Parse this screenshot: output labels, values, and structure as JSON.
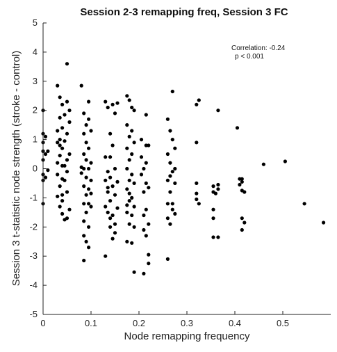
{
  "chart_data": {
    "type": "scatter",
    "title": "Session 2-3 remapping freq, Session 3 FC",
    "xlabel": "Node remapping frequency",
    "ylabel": "Session 3 t-statistic node strength (stroke - control)",
    "xlim": [
      0,
      0.6
    ],
    "ylim": [
      -5,
      5
    ],
    "xticks": [
      "0",
      "0.1",
      "0.2",
      "0.3",
      "0.4",
      "0.5"
    ],
    "yticks": [
      "-5",
      "-4",
      "-3",
      "-2",
      "-1",
      "0",
      "1",
      "2",
      "3",
      "4",
      "5"
    ],
    "grid": false,
    "annotations": [
      "Correlation: -0.24",
      "p < 0.001"
    ],
    "marker_color": "#000000",
    "points": [
      [
        0.0,
        2.0
      ],
      [
        0.0,
        1.2
      ],
      [
        0.0,
        0.9
      ],
      [
        0.0,
        0.6
      ],
      [
        0.0,
        0.3
      ],
      [
        0.0,
        -0.2
      ],
      [
        0.0,
        -0.4
      ],
      [
        0.0,
        -1.2
      ],
      [
        0.005,
        1.1
      ],
      [
        0.005,
        0.5
      ],
      [
        0.005,
        -0.3
      ],
      [
        0.01,
        0.6
      ],
      [
        0.01,
        -0.05
      ],
      [
        0.03,
        2.85
      ],
      [
        0.03,
        1.3
      ],
      [
        0.03,
        0.9
      ],
      [
        0.03,
        0.2
      ],
      [
        0.03,
        -0.2
      ],
      [
        0.035,
        2.45
      ],
      [
        0.035,
        1.75
      ],
      [
        0.035,
        1.0
      ],
      [
        0.035,
        0.45
      ],
      [
        0.035,
        -0.6
      ],
      [
        0.035,
        -1.3
      ],
      [
        0.04,
        2.2
      ],
      [
        0.04,
        1.4
      ],
      [
        0.04,
        0.7
      ],
      [
        0.04,
        0.1
      ],
      [
        0.04,
        -0.9
      ],
      [
        0.04,
        -1.55
      ],
      [
        0.045,
        1.85
      ],
      [
        0.045,
        0.95
      ],
      [
        0.045,
        -0.4
      ],
      [
        0.045,
        -1.75
      ],
      [
        0.05,
        3.6
      ],
      [
        0.05,
        2.3
      ],
      [
        0.05,
        1.2
      ],
      [
        0.05,
        0.3
      ],
      [
        0.05,
        -0.8
      ],
      [
        0.05,
        -1.7
      ],
      [
        0.055,
        1.6
      ],
      [
        0.055,
        0.5
      ],
      [
        0.055,
        -1.4
      ],
      [
        0.03,
        -0.95
      ],
      [
        0.04,
        -1.1
      ],
      [
        0.045,
        0.1
      ],
      [
        0.05,
        -0.1
      ],
      [
        0.035,
        0.8
      ],
      [
        0.055,
        2.0
      ],
      [
        0.04,
        -0.35
      ],
      [
        0.08,
        2.85
      ],
      [
        0.085,
        1.9
      ],
      [
        0.085,
        1.2
      ],
      [
        0.085,
        0.5
      ],
      [
        0.085,
        0.0
      ],
      [
        0.085,
        -0.6
      ],
      [
        0.085,
        -1.2
      ],
      [
        0.085,
        -1.8
      ],
      [
        0.085,
        -2.3
      ],
      [
        0.085,
        -3.15
      ],
      [
        0.09,
        1.5
      ],
      [
        0.09,
        0.9
      ],
      [
        0.09,
        0.3
      ],
      [
        0.09,
        -0.3
      ],
      [
        0.09,
        -0.9
      ],
      [
        0.09,
        -1.5
      ],
      [
        0.09,
        -2.5
      ],
      [
        0.095,
        2.3
      ],
      [
        0.095,
        1.7
      ],
      [
        0.095,
        0.7
      ],
      [
        0.095,
        0.0
      ],
      [
        0.095,
        -0.7
      ],
      [
        0.095,
        -1.2
      ],
      [
        0.095,
        -2.0
      ],
      [
        0.095,
        -2.7
      ],
      [
        0.1,
        1.3
      ],
      [
        0.1,
        0.2
      ],
      [
        0.1,
        -0.4
      ],
      [
        0.1,
        -1.3
      ],
      [
        0.08,
        0.05
      ],
      [
        0.08,
        -0.15
      ],
      [
        0.1,
        -0.85
      ],
      [
        0.13,
        2.3
      ],
      [
        0.13,
        0.4
      ],
      [
        0.13,
        -0.4
      ],
      [
        0.13,
        -1.3
      ],
      [
        0.13,
        -3.0
      ],
      [
        0.135,
        2.1
      ],
      [
        0.135,
        -0.1
      ],
      [
        0.135,
        -0.8
      ],
      [
        0.135,
        -1.5
      ],
      [
        0.14,
        1.2
      ],
      [
        0.14,
        0.4
      ],
      [
        0.14,
        -0.3
      ],
      [
        0.14,
        -1.1
      ],
      [
        0.14,
        -1.7
      ],
      [
        0.145,
        2.2
      ],
      [
        0.145,
        0.8
      ],
      [
        0.145,
        -0.6
      ],
      [
        0.145,
        -1.6
      ],
      [
        0.145,
        -2.4
      ],
      [
        0.15,
        1.9
      ],
      [
        0.15,
        0.0
      ],
      [
        0.15,
        -0.9
      ],
      [
        0.15,
        -1.9
      ],
      [
        0.15,
        -2.2
      ],
      [
        0.155,
        2.25
      ],
      [
        0.155,
        -0.45
      ],
      [
        0.155,
        -1.35
      ],
      [
        0.135,
        -0.65
      ],
      [
        0.14,
        -2.0
      ],
      [
        0.175,
        2.5
      ],
      [
        0.175,
        1.5
      ],
      [
        0.175,
        0.7
      ],
      [
        0.175,
        0.0
      ],
      [
        0.175,
        -0.7
      ],
      [
        0.175,
        -1.5
      ],
      [
        0.175,
        -2.5
      ],
      [
        0.18,
        2.35
      ],
      [
        0.18,
        1.1
      ],
      [
        0.18,
        0.3
      ],
      [
        0.18,
        -0.4
      ],
      [
        0.18,
        -1.1
      ],
      [
        0.18,
        -1.9
      ],
      [
        0.185,
        2.1
      ],
      [
        0.185,
        1.3
      ],
      [
        0.185,
        0.5
      ],
      [
        0.185,
        -0.2
      ],
      [
        0.185,
        -1.0
      ],
      [
        0.185,
        -1.6
      ],
      [
        0.185,
        -2.55
      ],
      [
        0.19,
        2.0
      ],
      [
        0.19,
        0.9
      ],
      [
        0.19,
        -0.5
      ],
      [
        0.19,
        -1.3
      ],
      [
        0.19,
        -2.0
      ],
      [
        0.19,
        -3.55
      ],
      [
        0.18,
        -0.85
      ],
      [
        0.175,
        -1.25
      ],
      [
        0.205,
        1.0
      ],
      [
        0.205,
        0.4
      ],
      [
        0.205,
        -0.2
      ],
      [
        0.21,
        -0.8
      ],
      [
        0.21,
        -1.6
      ],
      [
        0.21,
        -2.1
      ],
      [
        0.21,
        -3.6
      ],
      [
        0.215,
        1.85
      ],
      [
        0.215,
        0.8
      ],
      [
        0.215,
        0.2
      ],
      [
        0.215,
        -0.5
      ],
      [
        0.215,
        -1.4
      ],
      [
        0.215,
        -2.3
      ],
      [
        0.22,
        0.8
      ],
      [
        0.22,
        -0.65
      ],
      [
        0.22,
        -1.9
      ],
      [
        0.22,
        -2.95
      ],
      [
        0.22,
        -3.25
      ],
      [
        0.21,
        0.0
      ],
      [
        0.26,
        1.7
      ],
      [
        0.26,
        0.5
      ],
      [
        0.26,
        -0.4
      ],
      [
        0.26,
        -1.2
      ],
      [
        0.26,
        -1.7
      ],
      [
        0.26,
        -3.1
      ],
      [
        0.265,
        1.3
      ],
      [
        0.265,
        0.2
      ],
      [
        0.265,
        -0.8
      ],
      [
        0.265,
        -1.9
      ],
      [
        0.27,
        2.65
      ],
      [
        0.27,
        1.0
      ],
      [
        0.27,
        -0.1
      ],
      [
        0.27,
        -1.2
      ],
      [
        0.27,
        -1.4
      ],
      [
        0.275,
        0.7
      ],
      [
        0.275,
        0.0
      ],
      [
        0.275,
        -0.5
      ],
      [
        0.275,
        -1.55
      ],
      [
        0.265,
        -0.25
      ],
      [
        0.32,
        2.2
      ],
      [
        0.325,
        2.35
      ],
      [
        0.32,
        0.9
      ],
      [
        0.32,
        -0.5
      ],
      [
        0.32,
        -1.05
      ],
      [
        0.325,
        -1.2
      ],
      [
        0.32,
        -0.85
      ],
      [
        0.355,
        -0.6
      ],
      [
        0.355,
        -0.8
      ],
      [
        0.355,
        -1.4
      ],
      [
        0.355,
        -1.7
      ],
      [
        0.355,
        -2.35
      ],
      [
        0.365,
        2.0
      ],
      [
        0.365,
        -0.7
      ],
      [
        0.365,
        -0.55
      ],
      [
        0.365,
        -2.35
      ],
      [
        0.36,
        -0.85
      ],
      [
        0.405,
        1.4
      ],
      [
        0.41,
        -0.35
      ],
      [
        0.41,
        -0.55
      ],
      [
        0.415,
        -0.75
      ],
      [
        0.415,
        -0.35
      ],
      [
        0.415,
        -1.7
      ],
      [
        0.415,
        -2.1
      ],
      [
        0.42,
        -0.8
      ],
      [
        0.42,
        -1.85
      ],
      [
        0.415,
        -0.45
      ],
      [
        0.46,
        0.15
      ],
      [
        0.505,
        0.25
      ],
      [
        0.545,
        -1.2
      ],
      [
        0.585,
        -1.85
      ]
    ]
  }
}
